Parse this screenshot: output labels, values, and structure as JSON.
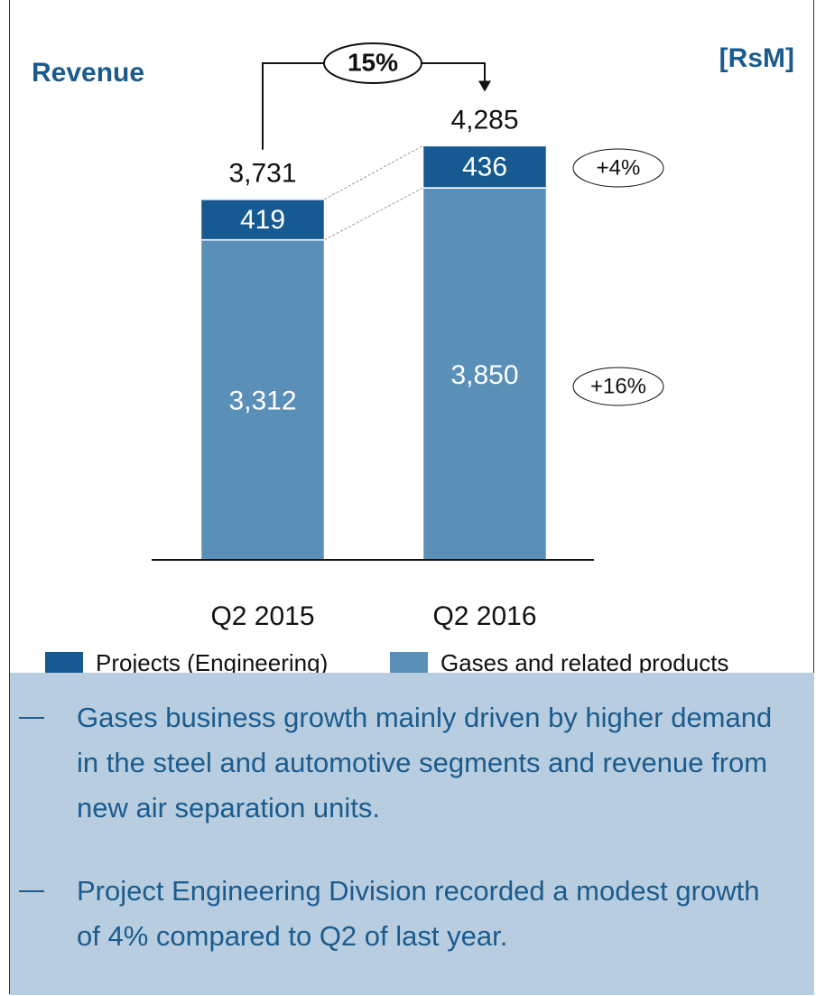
{
  "chart_data": {
    "type": "stacked-bar",
    "title": "Revenue",
    "unit": "[RsM]",
    "categories": [
      "Q2 2015",
      "Q2 2016"
    ],
    "series": [
      {
        "name": "Gases and related products",
        "color": "#5a8fb8",
        "values": [
          3312,
          3850
        ],
        "value_labels": [
          "3,312",
          "3,850"
        ]
      },
      {
        "name": "Projects (Engineering)",
        "color": "#175a91",
        "values": [
          419,
          436
        ]
      }
    ],
    "totals": [
      3731,
      4285
    ],
    "total_labels": [
      "3,731",
      "4,285"
    ],
    "ylim": [
      0,
      5000
    ],
    "annotations": [
      "15%",
      "+16%",
      "+4%"
    ],
    "bullets": [
      "Gases business growth mainly driven by  higher demand in the steel and automotive segments and revenue from new air separation units.",
      "Project Engineering Division recorded a modest growth of 4% compared to Q2 of last year."
    ]
  }
}
